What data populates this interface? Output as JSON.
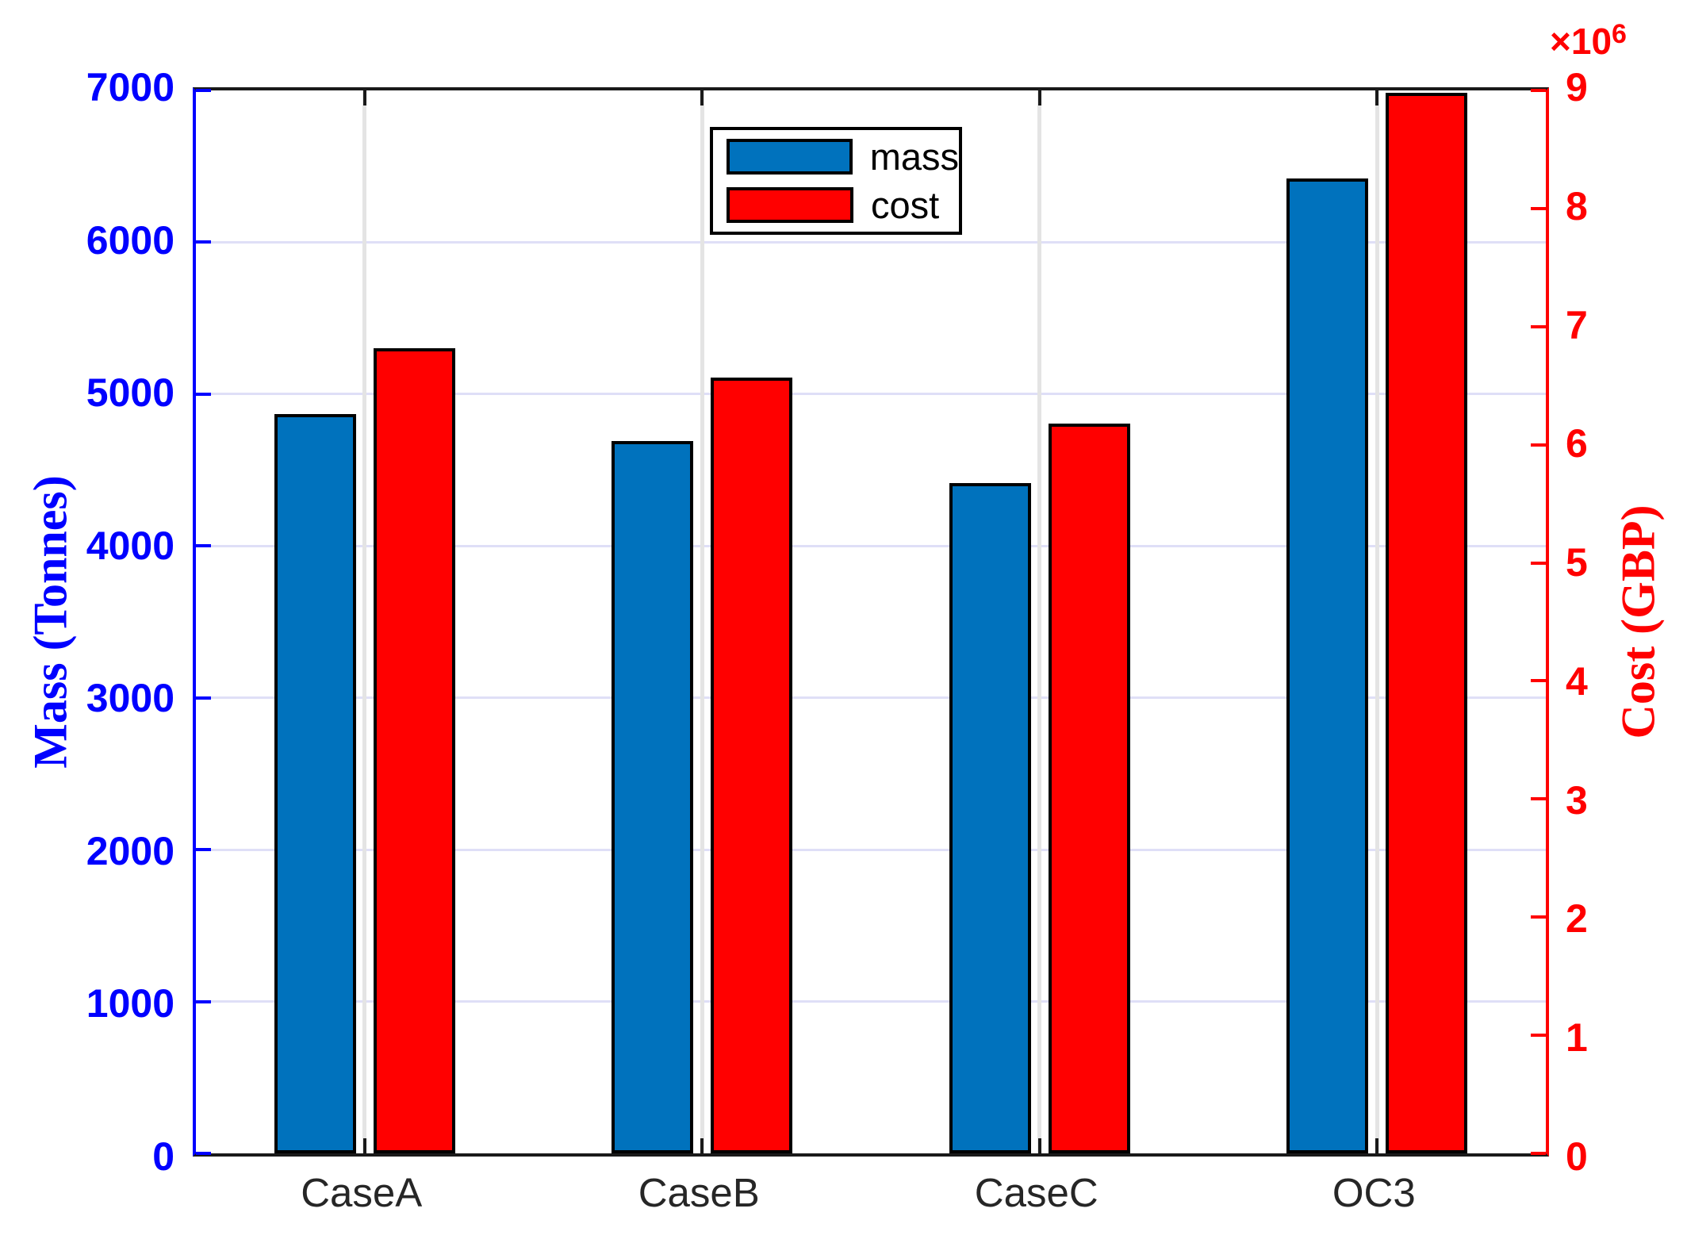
{
  "figure": {
    "background": "#ffffff",
    "axis_dark_color": "#1a1a1a"
  },
  "left_axis": {
    "label": "Mass (Tonnes)",
    "color": "#0000ff",
    "tick_values": [
      0,
      1000,
      2000,
      3000,
      4000,
      5000,
      6000,
      7000
    ],
    "max": 7000
  },
  "right_axis": {
    "label": "Cost (GBP)",
    "color": "#ff0000",
    "tick_values": [
      0,
      1,
      2,
      3,
      4,
      5,
      6,
      7,
      8,
      9
    ],
    "max": 9,
    "multiplier_base": "×10",
    "multiplier_exp": "6"
  },
  "x_axis": {
    "categories": [
      "CaseA",
      "CaseB",
      "CaseC",
      "OC3"
    ],
    "label_color": "#262626"
  },
  "legend": {
    "items": [
      {
        "label": "mass",
        "color": "#0072bd"
      },
      {
        "label": "cost",
        "color": "#ff0000"
      }
    ]
  },
  "chart_data": {
    "type": "bar",
    "title": "",
    "xlabel": "",
    "ylabel_left": "Mass (Tonnes)",
    "ylabel_right": "Cost (GBP)",
    "categories": [
      "CaseA",
      "CaseB",
      "CaseC",
      "OC3"
    ],
    "series": [
      {
        "name": "mass",
        "axis": "left",
        "color": "#0072bd",
        "unit": "Tonnes",
        "values": [
          4870,
          4690,
          4415,
          6420
        ]
      },
      {
        "name": "cost",
        "axis": "right",
        "color": "#ff0000",
        "unit": "GBP",
        "values": [
          6820000,
          6570000,
          6180000,
          8980000
        ],
        "values_millions": [
          6.82,
          6.57,
          6.18,
          8.98
        ]
      }
    ],
    "ylim_left": [
      0,
      7000
    ],
    "ylim_right": [
      0,
      9000000
    ],
    "grid": true,
    "legend_position": "top-center"
  }
}
